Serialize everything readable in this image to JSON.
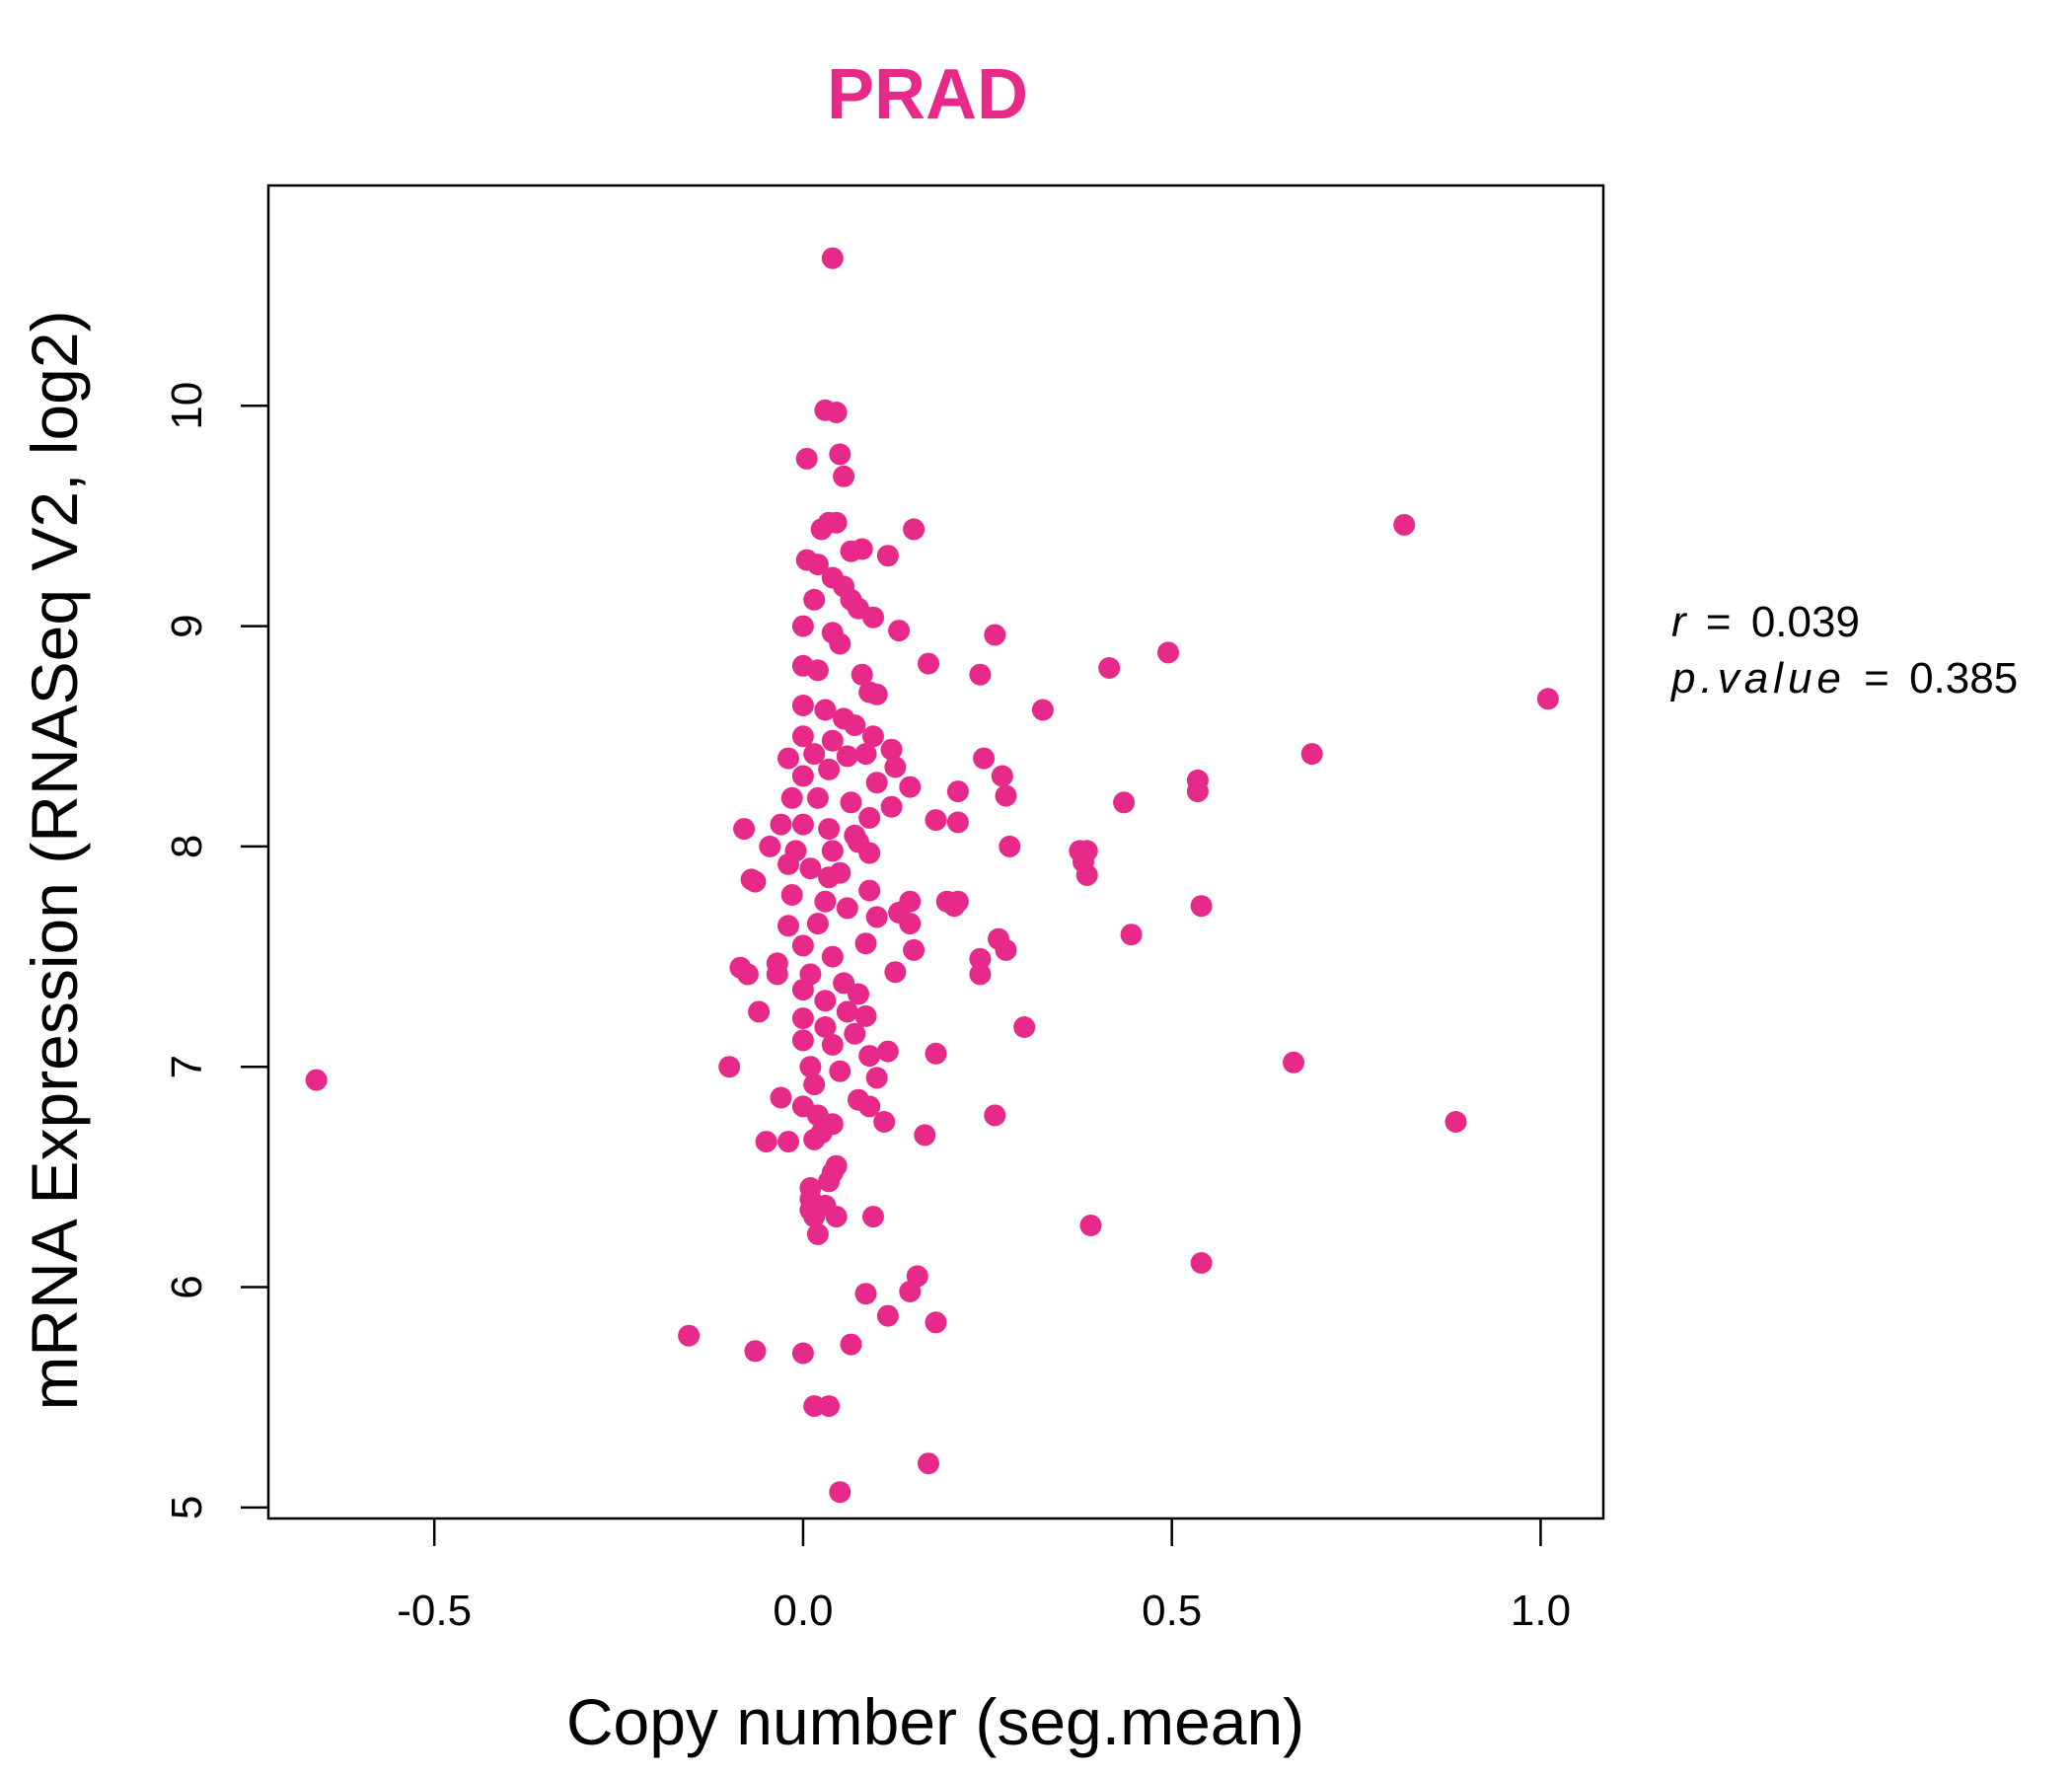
{
  "colors": {
    "accent": "#e7298a"
  },
  "chart_data": {
    "type": "scatter",
    "title": "PRAD",
    "xlabel": "Copy number (seg.mean)",
    "ylabel": "mRNA Expression (RNASeq V2, log2)",
    "xlim": [
      -0.725,
      1.085
    ],
    "ylim": [
      4.95,
      11.0
    ],
    "xticks": [
      -0.5,
      0.0,
      0.5,
      1.0
    ],
    "xtick_labels": [
      "-0.5",
      "0.0",
      "0.5",
      "1.0"
    ],
    "yticks": [
      5,
      6,
      7,
      8,
      9,
      10
    ],
    "ytick_labels": [
      "5",
      "6",
      "7",
      "8",
      "9",
      "10"
    ],
    "grid": false,
    "stats": {
      "r_label": "r",
      "r_value": "0.039",
      "p_label": "p.value",
      "p_value": "0.385",
      "eq": "="
    },
    "points": [
      [
        -0.66,
        6.94
      ],
      [
        0.04,
        10.67
      ],
      [
        0.03,
        9.98
      ],
      [
        0.045,
        9.97
      ],
      [
        0.005,
        9.76
      ],
      [
        0.05,
        9.78
      ],
      [
        0.055,
        9.68
      ],
      [
        0.815,
        9.46
      ],
      [
        0.15,
        9.44
      ],
      [
        0.025,
        9.44
      ],
      [
        0.045,
        9.47
      ],
      [
        0.035,
        9.47
      ],
      [
        0.08,
        9.35
      ],
      [
        0.065,
        9.34
      ],
      [
        0.115,
        9.32
      ],
      [
        0.005,
        9.3
      ],
      [
        0.02,
        9.28
      ],
      [
        0.04,
        9.22
      ],
      [
        0.055,
        9.18
      ],
      [
        0.065,
        9.12
      ],
      [
        0.015,
        9.12
      ],
      [
        0.075,
        9.08
      ],
      [
        0.095,
        9.04
      ],
      [
        0.13,
        8.98
      ],
      [
        0.26,
        8.96
      ],
      [
        0.0,
        9.0
      ],
      [
        0.04,
        8.97
      ],
      [
        0.05,
        8.92
      ],
      [
        0.495,
        8.88
      ],
      [
        0.415,
        8.81
      ],
      [
        0.17,
        8.83
      ],
      [
        0.24,
        8.78
      ],
      [
        0.0,
        8.82
      ],
      [
        0.02,
        8.8
      ],
      [
        0.08,
        8.78
      ],
      [
        0.09,
        8.7
      ],
      [
        0.1,
        8.69
      ],
      [
        1.01,
        8.67
      ],
      [
        0.325,
        8.62
      ],
      [
        0.0,
        8.64
      ],
      [
        0.03,
        8.62
      ],
      [
        0.055,
        8.58
      ],
      [
        0.07,
        8.55
      ],
      [
        0.095,
        8.5
      ],
      [
        0.0,
        8.5
      ],
      [
        0.04,
        8.48
      ],
      [
        0.12,
        8.44
      ],
      [
        0.69,
        8.42
      ],
      [
        0.245,
        8.4
      ],
      [
        -0.02,
        8.4
      ],
      [
        0.015,
        8.42
      ],
      [
        0.06,
        8.41
      ],
      [
        0.085,
        8.42
      ],
      [
        0.125,
        8.36
      ],
      [
        0.27,
        8.32
      ],
      [
        0.0,
        8.32
      ],
      [
        0.035,
        8.35
      ],
      [
        0.535,
        8.3
      ],
      [
        0.1,
        8.29
      ],
      [
        0.145,
        8.27
      ],
      [
        0.535,
        8.25
      ],
      [
        0.21,
        8.25
      ],
      [
        0.275,
        8.23
      ],
      [
        -0.015,
        8.22
      ],
      [
        0.02,
        8.22
      ],
      [
        0.065,
        8.2
      ],
      [
        0.435,
        8.2
      ],
      [
        0.12,
        8.18
      ],
      [
        0.18,
        8.12
      ],
      [
        0.21,
        8.11
      ],
      [
        0.09,
        8.13
      ],
      [
        -0.08,
        8.08
      ],
      [
        -0.03,
        8.1
      ],
      [
        0.0,
        8.1
      ],
      [
        0.035,
        8.08
      ],
      [
        0.07,
        8.05
      ],
      [
        0.28,
        8.0
      ],
      [
        0.375,
        7.98
      ],
      [
        0.385,
        7.98
      ],
      [
        0.075,
        8.02
      ],
      [
        -0.045,
        8.0
      ],
      [
        -0.01,
        7.98
      ],
      [
        0.04,
        7.98
      ],
      [
        0.09,
        7.97
      ],
      [
        0.38,
        7.93
      ],
      [
        0.385,
        7.87
      ],
      [
        -0.02,
        7.92
      ],
      [
        0.01,
        7.9
      ],
      [
        0.05,
        7.88
      ],
      [
        -0.07,
        7.85
      ],
      [
        -0.065,
        7.84
      ],
      [
        0.035,
        7.86
      ],
      [
        0.09,
        7.8
      ],
      [
        0.195,
        7.75
      ],
      [
        0.21,
        7.75
      ],
      [
        0.145,
        7.75
      ],
      [
        0.205,
        7.73
      ],
      [
        0.54,
        7.73
      ],
      [
        0.13,
        7.7
      ],
      [
        -0.015,
        7.78
      ],
      [
        0.03,
        7.75
      ],
      [
        0.06,
        7.72
      ],
      [
        0.1,
        7.68
      ],
      [
        0.145,
        7.65
      ],
      [
        -0.02,
        7.64
      ],
      [
        0.02,
        7.65
      ],
      [
        0.445,
        7.6
      ],
      [
        0.265,
        7.58
      ],
      [
        0.085,
        7.56
      ],
      [
        0.275,
        7.53
      ],
      [
        0.15,
        7.53
      ],
      [
        0.0,
        7.55
      ],
      [
        0.04,
        7.5
      ],
      [
        0.24,
        7.49
      ],
      [
        -0.085,
        7.45
      ],
      [
        -0.035,
        7.47
      ],
      [
        -0.075,
        7.42
      ],
      [
        0.125,
        7.43
      ],
      [
        0.24,
        7.42
      ],
      [
        -0.035,
        7.42
      ],
      [
        0.01,
        7.42
      ],
      [
        0.055,
        7.38
      ],
      [
        0.075,
        7.33
      ],
      [
        0.0,
        7.35
      ],
      [
        0.03,
        7.3
      ],
      [
        -0.06,
        7.25
      ],
      [
        0.06,
        7.25
      ],
      [
        0.085,
        7.23
      ],
      [
        0.3,
        7.18
      ],
      [
        0.0,
        7.22
      ],
      [
        0.03,
        7.18
      ],
      [
        0.07,
        7.15
      ],
      [
        0.0,
        7.12
      ],
      [
        0.04,
        7.1
      ],
      [
        0.18,
        7.06
      ],
      [
        0.115,
        7.07
      ],
      [
        0.09,
        7.05
      ],
      [
        0.665,
        7.02
      ],
      [
        -0.1,
        7.0
      ],
      [
        0.01,
        7.0
      ],
      [
        0.05,
        6.98
      ],
      [
        0.1,
        6.95
      ],
      [
        0.015,
        6.92
      ],
      [
        -0.03,
        6.86
      ],
      [
        0.075,
        6.85
      ],
      [
        0.0,
        6.82
      ],
      [
        0.09,
        6.82
      ],
      [
        0.26,
        6.78
      ],
      [
        0.885,
        6.75
      ],
      [
        0.11,
        6.75
      ],
      [
        0.02,
        6.78
      ],
      [
        0.04,
        6.74
      ],
      [
        0.025,
        6.7
      ],
      [
        0.165,
        6.69
      ],
      [
        0.015,
        6.67
      ],
      [
        -0.05,
        6.66
      ],
      [
        -0.02,
        6.66
      ],
      [
        0.045,
        6.55
      ],
      [
        0.04,
        6.52
      ],
      [
        0.035,
        6.48
      ],
      [
        0.01,
        6.45
      ],
      [
        0.01,
        6.4
      ],
      [
        0.03,
        6.37
      ],
      [
        0.01,
        6.35
      ],
      [
        0.015,
        6.32
      ],
      [
        0.045,
        6.32
      ],
      [
        0.095,
        6.32
      ],
      [
        0.39,
        6.28
      ],
      [
        0.02,
        6.24
      ],
      [
        0.54,
        6.11
      ],
      [
        0.155,
        6.05
      ],
      [
        0.145,
        5.98
      ],
      [
        0.085,
        5.97
      ],
      [
        0.115,
        5.87
      ],
      [
        0.18,
        5.84
      ],
      [
        -0.155,
        5.78
      ],
      [
        0.065,
        5.74
      ],
      [
        -0.065,
        5.71
      ],
      [
        0.0,
        5.7
      ],
      [
        0.015,
        5.46
      ],
      [
        0.035,
        5.46
      ],
      [
        0.17,
        5.2
      ],
      [
        0.05,
        5.07
      ]
    ]
  }
}
